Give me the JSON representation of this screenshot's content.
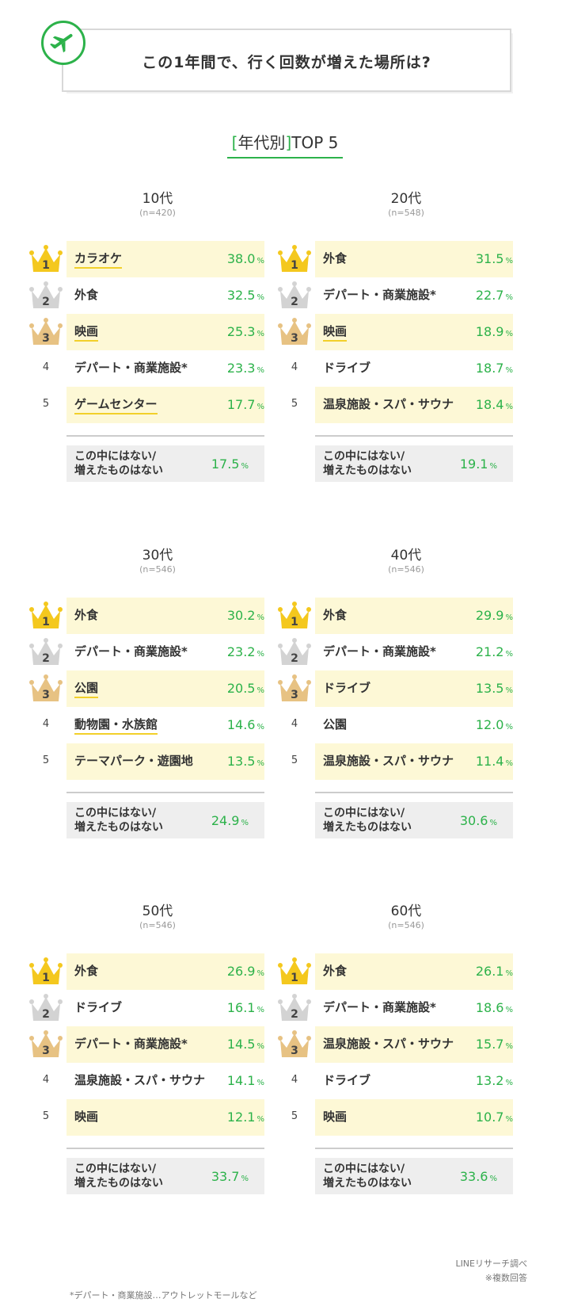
{
  "header": {
    "title": "この1年間で、行く回数が増えた場所は?",
    "icon": "airplane-icon",
    "accent": "#2cb24a"
  },
  "subtitle": {
    "open": "[",
    "main": "年代別",
    "close": "]",
    "suffix": "TOP 5"
  },
  "chart_data": [
    {
      "type": "table",
      "title": "10代",
      "n": "(n=420)",
      "items": [
        {
          "rank": "1",
          "label": "カラオケ",
          "value": 38.0
        },
        {
          "rank": "2",
          "label": "外食",
          "value": 32.5
        },
        {
          "rank": "3",
          "label": "映画",
          "value": 25.3
        },
        {
          "rank": "4",
          "label": "デパート・商業施設*",
          "value": 23.3
        },
        {
          "rank": "5",
          "label": "ゲームセンター",
          "value": 17.7
        }
      ],
      "none": {
        "label_1": "この中にはない/",
        "label_2": "増えたものはない",
        "value": 17.5
      },
      "underlined": [
        0,
        2,
        4
      ]
    },
    {
      "type": "table",
      "title": "20代",
      "n": "(n=548)",
      "items": [
        {
          "rank": "1",
          "label": "外食",
          "value": 31.5
        },
        {
          "rank": "2",
          "label": "デパート・商業施設*",
          "value": 22.7
        },
        {
          "rank": "3",
          "label": "映画",
          "value": 18.9
        },
        {
          "rank": "4",
          "label": "ドライブ",
          "value": 18.7
        },
        {
          "rank": "5",
          "label": "温泉施設・スパ・サウナ",
          "value": 18.4
        }
      ],
      "none": {
        "label_1": "この中にはない/",
        "label_2": "増えたものはない",
        "value": 19.1
      },
      "underlined": [
        2
      ]
    },
    {
      "type": "table",
      "title": "30代",
      "n": "(n=546)",
      "items": [
        {
          "rank": "1",
          "label": "外食",
          "value": 30.2
        },
        {
          "rank": "2",
          "label": "デパート・商業施設*",
          "value": 23.2
        },
        {
          "rank": "3",
          "label": "公園",
          "value": 20.5
        },
        {
          "rank": "4",
          "label": "動物園・水族館",
          "value": 14.6
        },
        {
          "rank": "5",
          "label": "テーマパーク・遊園地",
          "value": 13.5
        }
      ],
      "none": {
        "label_1": "この中にはない/",
        "label_2": "増えたものはない",
        "value": 24.9
      },
      "underlined": [
        2,
        3
      ]
    },
    {
      "type": "table",
      "title": "40代",
      "n": "(n=546)",
      "items": [
        {
          "rank": "1",
          "label": "外食",
          "value": 29.9
        },
        {
          "rank": "2",
          "label": "デパート・商業施設*",
          "value": 21.2
        },
        {
          "rank": "3",
          "label": "ドライブ",
          "value": 13.5
        },
        {
          "rank": "4",
          "label": "公園",
          "value": 12.0
        },
        {
          "rank": "5",
          "label": "温泉施設・スパ・サウナ",
          "value": 11.4
        }
      ],
      "none": {
        "label_1": "この中にはない/",
        "label_2": "増えたものはない",
        "value": 30.6
      },
      "underlined": []
    },
    {
      "type": "table",
      "title": "50代",
      "n": "(n=546)",
      "items": [
        {
          "rank": "1",
          "label": "外食",
          "value": 26.9
        },
        {
          "rank": "2",
          "label": "ドライブ",
          "value": 16.1
        },
        {
          "rank": "3",
          "label": "デパート・商業施設*",
          "value": 14.5
        },
        {
          "rank": "4",
          "label": "温泉施設・スパ・サウナ",
          "value": 14.1
        },
        {
          "rank": "5",
          "label": "映画",
          "value": 12.1
        }
      ],
      "none": {
        "label_1": "この中にはない/",
        "label_2": "増えたものはない",
        "value": 33.7
      },
      "underlined": []
    },
    {
      "type": "table",
      "title": "60代",
      "n": "(n=546)",
      "items": [
        {
          "rank": "1",
          "label": "外食",
          "value": 26.1
        },
        {
          "rank": "2",
          "label": "デパート・商業施設*",
          "value": 18.6
        },
        {
          "rank": "3",
          "label": "温泉施設・スパ・サウナ",
          "value": 15.7
        },
        {
          "rank": "4",
          "label": "ドライブ",
          "value": 13.2
        },
        {
          "rank": "5",
          "label": "映画",
          "value": 10.7
        }
      ],
      "none": {
        "label_1": "この中にはない/",
        "label_2": "増えたものはない",
        "value": 33.6
      },
      "underlined": []
    }
  ],
  "unit": "%",
  "colors": {
    "value": "#2cb24a",
    "highlight": "#fdf8d6",
    "underline": "#f2d02a",
    "gold": "#f4c81e",
    "silver": "#d3d3d3",
    "bronze": "#e7c283",
    "none_bg": "#eeeeee"
  },
  "footer": {
    "source": "LINEリサーチ調べ",
    "multi": "※複数回答",
    "note": "*デパート・商業施設…アウトレットモールなど"
  }
}
